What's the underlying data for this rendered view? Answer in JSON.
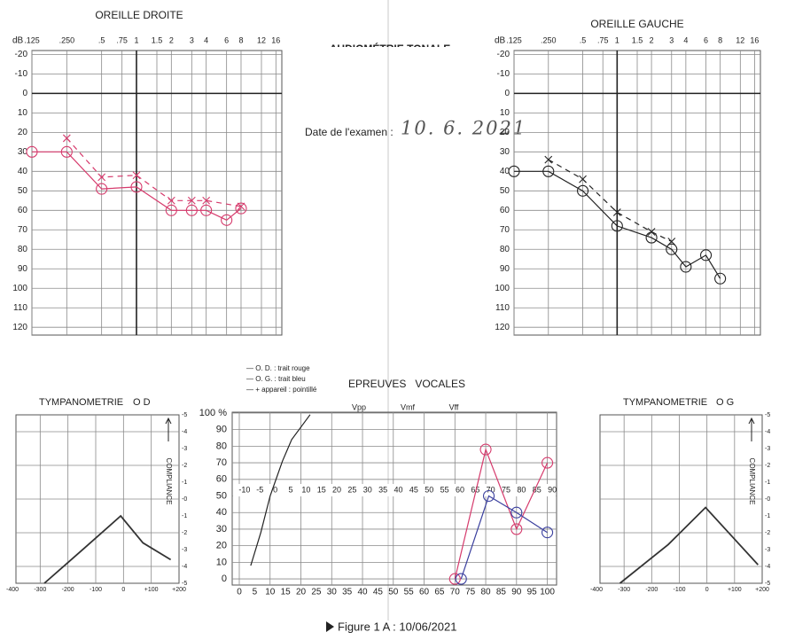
{
  "header": {
    "title": "AUDIOMÉTRIE TONALE",
    "date_label": "Date de l'examen :",
    "date_value": "10. 6. 2021"
  },
  "legend_notes": [
    "— O. D. : trait rouge",
    "— O. G. : trait bleu",
    "— + appareil : pointillé"
  ],
  "caption": "Figure 1 A : 10/06/2021",
  "chart_data": [
    {
      "type": "audiogram",
      "title": "OREILLE DROITE",
      "y_unit": "dB",
      "xscale": "log",
      "xlim": [
        0.125,
        18
      ],
      "xticks": [
        {
          "value": 0.125,
          "label": ".125"
        },
        {
          "value": 0.25,
          "label": ".250"
        },
        {
          "value": 0.5,
          "label": ".5"
        },
        {
          "value": 0.75,
          "label": ".75"
        },
        1,
        1.5,
        2,
        3,
        4,
        6,
        8,
        12,
        16
      ],
      "ylim": [
        124,
        -22
      ],
      "yticks": [
        -20,
        -10,
        0,
        10,
        20,
        30,
        40,
        50,
        60,
        70,
        80,
        90,
        100,
        110,
        120
      ],
      "grid": true,
      "reference_lines": {
        "x": 1,
        "y": 0
      },
      "series": [
        {
          "color": "#d63a6c",
          "style": "solid",
          "marker": "circle",
          "x": [
            0.125,
            0.25,
            0.5,
            1,
            2,
            3,
            4,
            6,
            8
          ],
          "values": [
            30,
            30,
            49,
            48,
            60,
            60,
            60,
            65,
            59
          ]
        },
        {
          "color": "#d63a6c",
          "style": "dashed",
          "marker": "cross",
          "x": [
            0.25,
            0.5,
            1,
            2,
            3,
            4,
            8
          ],
          "values": [
            23,
            43,
            42,
            55,
            55,
            55,
            58
          ]
        }
      ]
    },
    {
      "type": "audiogram",
      "title": "OREILLE GAUCHE",
      "y_unit": "dB",
      "xscale": "log",
      "xlim": [
        0.125,
        18
      ],
      "xticks": [
        {
          "value": 0.125,
          "label": ".125"
        },
        {
          "value": 0.25,
          "label": ".250"
        },
        {
          "value": 0.5,
          "label": ".5"
        },
        {
          "value": 0.75,
          "label": ".75"
        },
        1,
        1.5,
        2,
        3,
        4,
        6,
        8,
        12,
        16
      ],
      "ylim": [
        124,
        -22
      ],
      "yticks": [
        -20,
        -10,
        0,
        10,
        20,
        30,
        40,
        50,
        60,
        70,
        80,
        90,
        100,
        110,
        120
      ],
      "grid": true,
      "reference_lines": {
        "x": 1,
        "y": 0
      },
      "series": [
        {
          "color": "#222222",
          "style": "solid",
          "marker": "circle",
          "x": [
            0.125,
            0.25,
            0.5,
            1,
            2,
            3,
            4,
            6,
            8
          ],
          "values": [
            40,
            40,
            50,
            68,
            74,
            80,
            89,
            83,
            95
          ]
        },
        {
          "color": "#222222",
          "style": "dashed",
          "marker": "cross",
          "x": [
            0.25,
            0.5,
            1,
            2,
            3
          ],
          "values": [
            34,
            44,
            61,
            71,
            76
          ]
        }
      ]
    },
    {
      "type": "tympanogram",
      "title": "TYMPANOMETRIE",
      "subtitle": "O D",
      "ylabel": "COMPLIANCE",
      "xlim": [
        -400,
        200
      ],
      "xticks": [
        -400,
        -300,
        -200,
        -100,
        0,
        {
          "value": 100,
          "label": "+100"
        },
        {
          "value": 200,
          "label": "+200"
        }
      ],
      "ylim": [
        -5,
        5
      ],
      "y_labels": [
        "-5",
        "-4",
        "-3",
        "-2",
        "-1",
        "-0",
        "-1",
        "-2",
        "-3",
        "-4",
        "-5"
      ],
      "series": [
        {
          "color": "#333333",
          "x": [
            -285,
            -140,
            -10,
            70,
            170
          ],
          "values": [
            -5,
            -2.9,
            -1,
            -2.6,
            -3.6
          ]
        }
      ]
    },
    {
      "type": "tympanogram",
      "title": "TYMPANOMETRIE",
      "subtitle": "O G",
      "ylabel": "COMPLIANCE",
      "xlim": [
        -400,
        200
      ],
      "xticks": [
        -400,
        -300,
        -200,
        -100,
        0,
        {
          "value": 100,
          "label": "+100"
        },
        {
          "value": 200,
          "label": "+200"
        }
      ],
      "ylim": [
        -5,
        5
      ],
      "y_labels": [
        "-5",
        "-4",
        "-3",
        "-2",
        "-1",
        "-0",
        "-1",
        "-2",
        "-3",
        "-4",
        "-5"
      ],
      "series": [
        {
          "color": "#333333",
          "x": [
            -315,
            -140,
            -5,
            90,
            185
          ],
          "values": [
            -5,
            -2.7,
            -0.5,
            -2.2,
            -3.9
          ]
        }
      ]
    },
    {
      "type": "speech",
      "title": "EPREUVES   VOCALES",
      "annotations": [
        "Vpp",
        "Vmf",
        "Vff"
      ],
      "xlim": [
        -2.3,
        103
      ],
      "xticks": [
        0,
        5,
        10,
        15,
        20,
        25,
        30,
        35,
        40,
        45,
        50,
        55,
        60,
        65,
        70,
        75,
        80,
        85,
        90,
        95,
        100
      ],
      "x2lim": [
        -14,
        91.4
      ],
      "x2ticks": [
        -10,
        -5,
        0,
        5,
        10,
        15,
        20,
        25,
        30,
        35,
        40,
        45,
        50,
        55,
        60,
        65,
        70,
        75,
        80,
        85,
        90
      ],
      "ylim": [
        -3.7,
        100.5
      ],
      "yticks": [
        0,
        10,
        20,
        30,
        40,
        50,
        60,
        70,
        80,
        90,
        {
          "value": 100,
          "label": "100 %"
        }
      ],
      "series": [
        {
          "color": "#222222",
          "marker": "none",
          "x": [
            3.7,
            7,
            10,
            14,
            17,
            23
          ],
          "values": [
            8,
            28,
            50,
            71,
            84,
            99
          ]
        },
        {
          "color": "#d63a6c",
          "marker": "circle",
          "x": [
            70,
            80,
            90,
            100
          ],
          "values": [
            0,
            78,
            30,
            70
          ]
        },
        {
          "color": "#3a3f9e",
          "marker": "circle",
          "x": [
            72,
            81,
            90,
            100
          ],
          "values": [
            0,
            50,
            40,
            28
          ]
        }
      ]
    }
  ]
}
